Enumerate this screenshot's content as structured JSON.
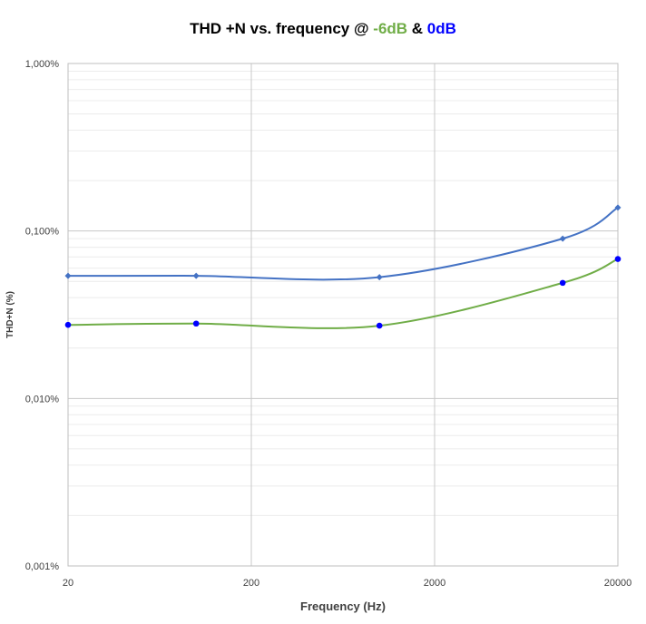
{
  "chart_data": {
    "type": "line",
    "title_parts": [
      {
        "text": "THD +N vs. frequency @ ",
        "color": "#000000"
      },
      {
        "text": "-6dB",
        "color": "#70AD47"
      },
      {
        "text": " & ",
        "color": "#000000"
      },
      {
        "text": "0dB",
        "color": "#0000FF"
      }
    ],
    "xlabel": "Frequency (Hz)",
    "ylabel": "THD+N (%)",
    "x_scale": "log",
    "y_scale": "log",
    "xlim": [
      20,
      20000
    ],
    "ylim": [
      0.001,
      1.0
    ],
    "x_ticks": [
      {
        "value": 20,
        "label": "20"
      },
      {
        "value": 200,
        "label": "200"
      },
      {
        "value": 2000,
        "label": "2000"
      },
      {
        "value": 20000,
        "label": "20000"
      }
    ],
    "y_ticks": [
      {
        "value": 1.0,
        "label": "1,000%"
      },
      {
        "value": 0.1,
        "label": "0,100%"
      },
      {
        "value": 0.01,
        "label": "0,010%"
      },
      {
        "value": 0.001,
        "label": "0,001%"
      }
    ],
    "grid": true,
    "series": [
      {
        "line_color": "#4472C4",
        "marker_color": "#4472C4",
        "marker": "diamond",
        "x": [
          20,
          100,
          1000,
          10000,
          20000
        ],
        "y": [
          0.054,
          0.054,
          0.053,
          0.09,
          0.138
        ]
      },
      {
        "line_color": "#70AD47",
        "marker_color": "#0000FF",
        "marker": "circle",
        "x": [
          20,
          100,
          1000,
          10000,
          20000
        ],
        "y": [
          0.0275,
          0.028,
          0.0272,
          0.049,
          0.068
        ]
      }
    ]
  }
}
